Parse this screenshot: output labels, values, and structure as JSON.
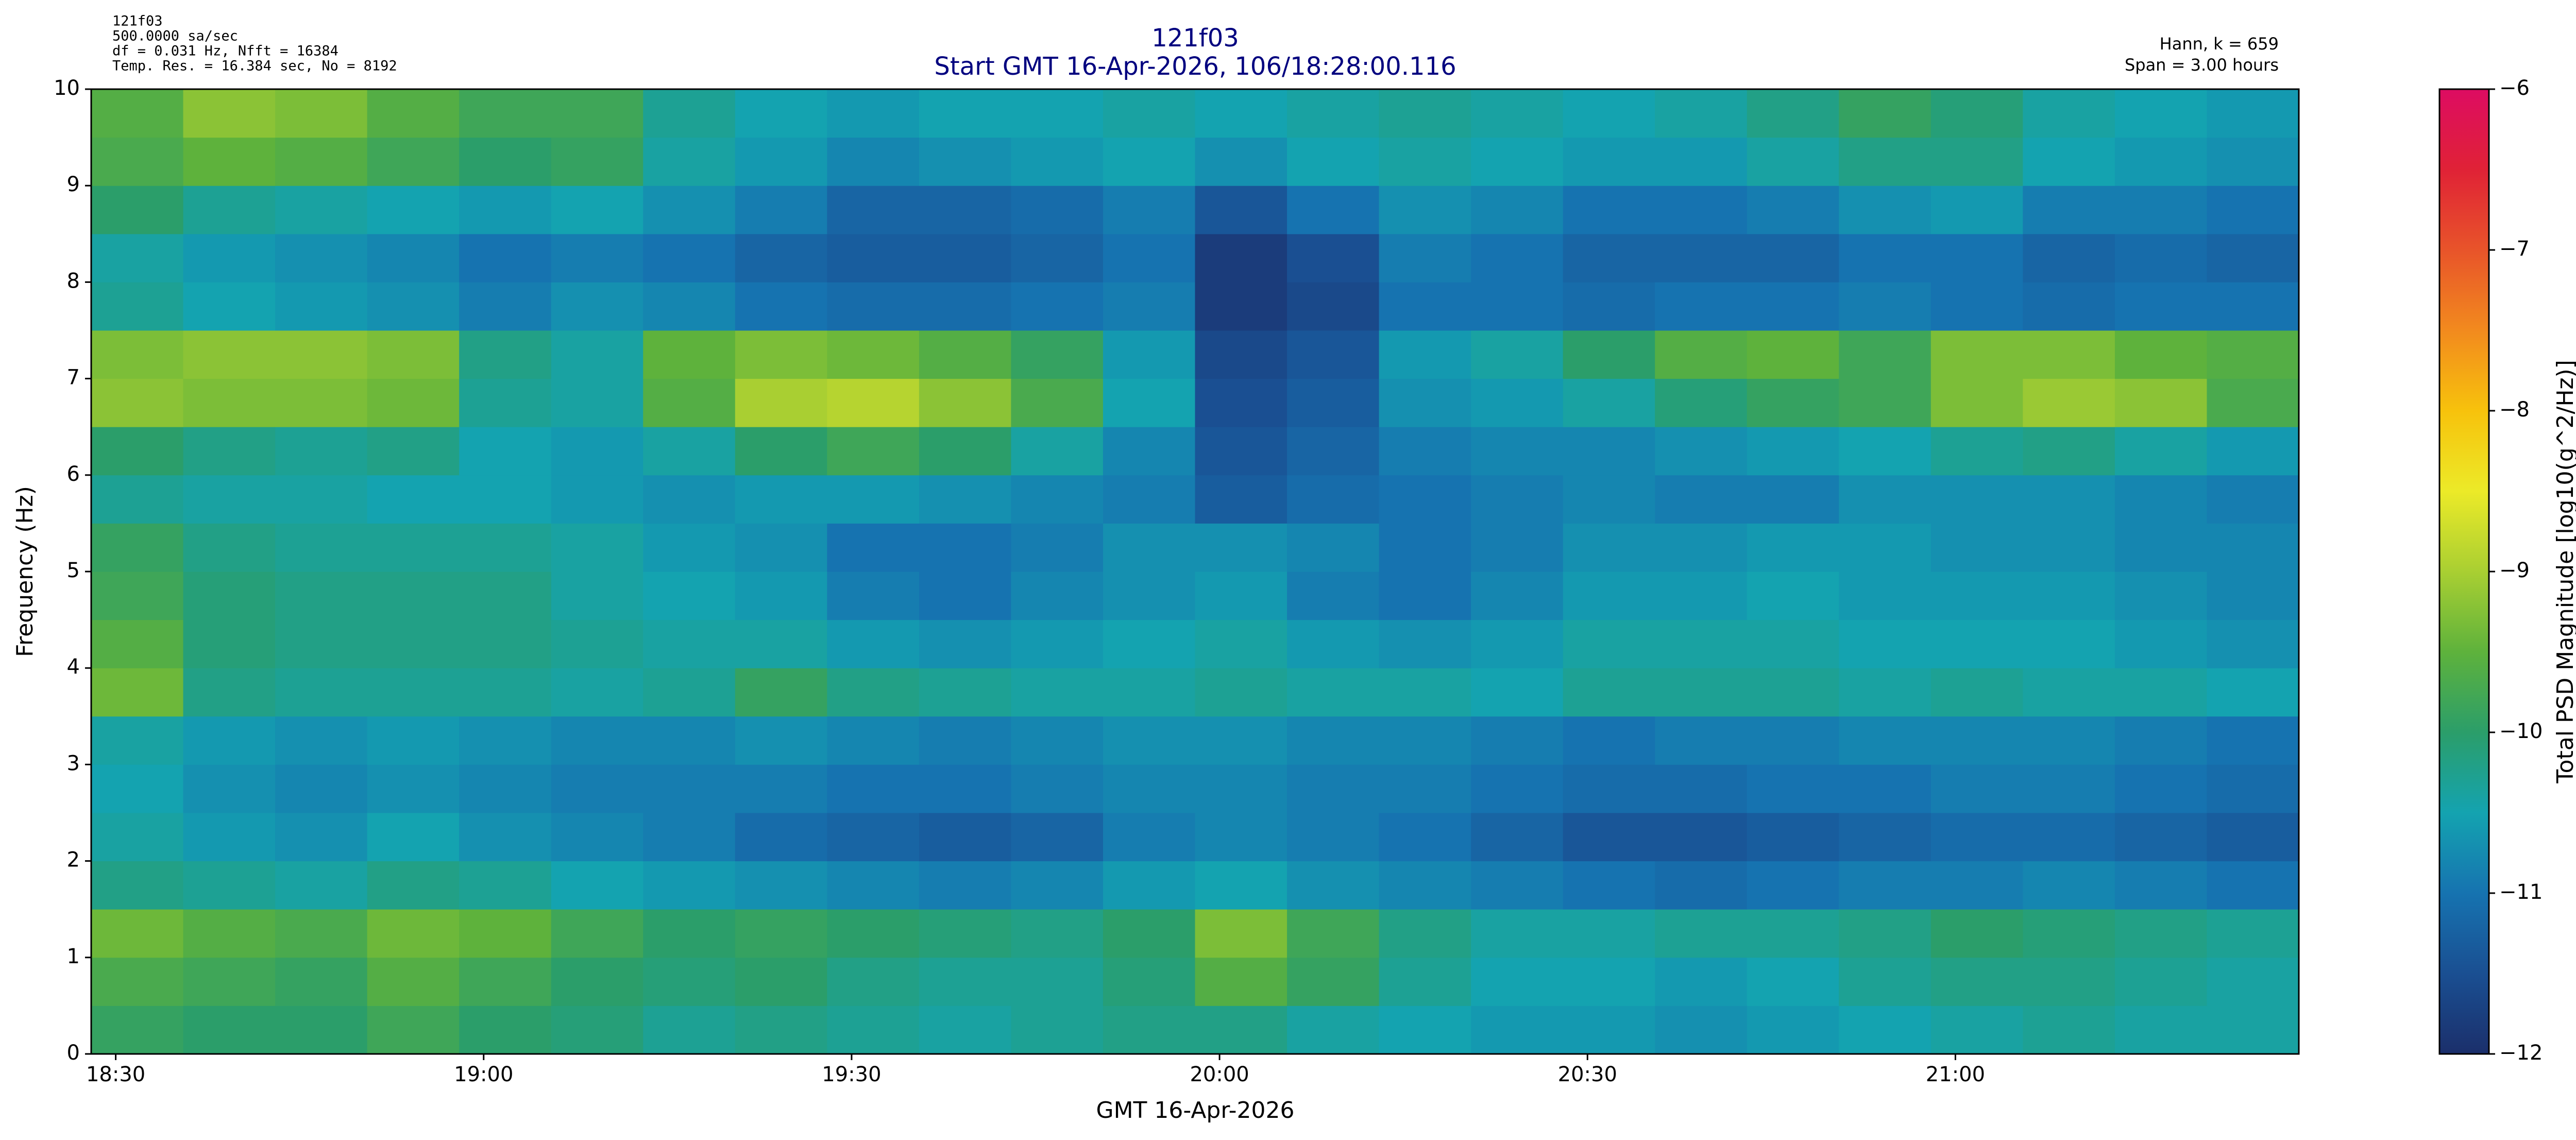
{
  "chart_data": {
    "type": "heatmap",
    "info_lines": [
      "121f03",
      "500.0000 sa/sec",
      "df = 0.031 Hz,  Nfft = 16384",
      "Temp. Res. = 16.384 sec, No = 8192"
    ],
    "title": "121f03",
    "subtitle": "Start GMT 16-Apr-2026, 106/18:28:00.116",
    "right_lines": [
      "Hann, k = 659",
      "Span = 3.00 hours"
    ],
    "xlabel": "GMT 16-Apr-2026",
    "ylabel": "Frequency (Hz)",
    "colorbar_label": "Total PSD Magnitude [log10(g^2/Hz)]",
    "xlim": [
      1108,
      1288
    ],
    "xticks": [
      {
        "value": 1110,
        "label": "18:30"
      },
      {
        "value": 1140,
        "label": "19:00"
      },
      {
        "value": 1170,
        "label": "19:30"
      },
      {
        "value": 1200,
        "label": "20:00"
      },
      {
        "value": 1230,
        "label": "20:30"
      },
      {
        "value": 1260,
        "label": "21:00"
      }
    ],
    "ylim": [
      0,
      10
    ],
    "yticks": [
      0,
      1,
      2,
      3,
      4,
      5,
      6,
      7,
      8,
      9,
      10
    ],
    "zlim": [
      -12,
      -6
    ],
    "zticks": [
      {
        "value": -12,
        "label": "−12"
      },
      {
        "value": -11,
        "label": "−11"
      },
      {
        "value": -10,
        "label": "−10"
      },
      {
        "value": -9,
        "label": "−9"
      },
      {
        "value": -8,
        "label": "−8"
      },
      {
        "value": -7,
        "label": "−7"
      },
      {
        "value": -6,
        "label": "−6"
      }
    ],
    "colormap": [
      "#1b2f6b",
      "#1a4f92",
      "#1673b0",
      "#14a3b0",
      "#2b9e6a",
      "#5eb23c",
      "#a9cf32",
      "#ecea28",
      "#f7c20c",
      "#f28a1e",
      "#e8542a",
      "#e02236",
      "#dd0c62"
    ],
    "xbins": [
      1108,
      1115.5,
      1123,
      1130.5,
      1138,
      1145.5,
      1153,
      1160.5,
      1168,
      1175.5,
      1183,
      1190.5,
      1198,
      1205.5,
      1213,
      1220.5,
      1228,
      1235.5,
      1243,
      1250.5,
      1258,
      1265.5,
      1273,
      1280.5,
      1288
    ],
    "ybins": [
      0,
      0.5,
      1,
      1.5,
      2,
      2.5,
      3,
      3.5,
      4,
      4.5,
      5,
      5.5,
      6,
      6.5,
      7,
      7.5,
      8,
      8.5,
      9,
      9.5,
      10
    ],
    "z": [
      [
        -9.9,
        -10.0,
        -10.0,
        -9.8,
        -10.0,
        -10.1,
        -10.3,
        -10.2,
        -10.3,
        -10.4,
        -10.3,
        -10.2,
        -10.2,
        -10.4,
        -10.5,
        -10.6,
        -10.6,
        -10.7,
        -10.6,
        -10.5,
        -10.4,
        -10.3,
        -10.4,
        -10.4
      ],
      [
        -9.7,
        -9.8,
        -9.9,
        -9.6,
        -9.8,
        -10.0,
        -10.1,
        -10.0,
        -10.2,
        -10.3,
        -10.3,
        -10.1,
        -9.6,
        -9.9,
        -10.3,
        -10.5,
        -10.5,
        -10.6,
        -10.5,
        -10.3,
        -10.2,
        -10.2,
        -10.3,
        -10.4
      ],
      [
        -9.4,
        -9.6,
        -9.7,
        -9.4,
        -9.5,
        -9.8,
        -10.0,
        -9.9,
        -10.0,
        -10.1,
        -10.2,
        -10.0,
        -9.3,
        -9.8,
        -10.2,
        -10.4,
        -10.4,
        -10.3,
        -10.3,
        -10.2,
        -10.0,
        -10.1,
        -10.2,
        -10.3
      ],
      [
        -10.2,
        -10.3,
        -10.4,
        -10.2,
        -10.3,
        -10.5,
        -10.6,
        -10.7,
        -10.8,
        -10.9,
        -10.8,
        -10.6,
        -10.5,
        -10.7,
        -10.8,
        -10.9,
        -11.0,
        -11.1,
        -11.0,
        -10.9,
        -10.9,
        -10.8,
        -10.9,
        -11.0
      ],
      [
        -10.4,
        -10.6,
        -10.7,
        -10.5,
        -10.7,
        -10.8,
        -10.9,
        -11.1,
        -11.2,
        -11.3,
        -11.2,
        -10.9,
        -10.8,
        -10.9,
        -11.0,
        -11.2,
        -11.4,
        -11.4,
        -11.3,
        -11.2,
        -11.1,
        -11.1,
        -11.2,
        -11.3
      ],
      [
        -10.5,
        -10.7,
        -10.8,
        -10.7,
        -10.8,
        -10.9,
        -10.9,
        -10.9,
        -11.0,
        -11.0,
        -10.9,
        -10.8,
        -10.8,
        -10.9,
        -10.9,
        -11.0,
        -11.1,
        -11.1,
        -11.0,
        -11.0,
        -10.9,
        -10.9,
        -11.0,
        -11.1
      ],
      [
        -10.4,
        -10.6,
        -10.7,
        -10.6,
        -10.7,
        -10.8,
        -10.8,
        -10.7,
        -10.8,
        -10.9,
        -10.8,
        -10.7,
        -10.7,
        -10.8,
        -10.8,
        -10.9,
        -11.0,
        -10.9,
        -10.9,
        -10.8,
        -10.8,
        -10.8,
        -10.9,
        -11.0
      ],
      [
        -9.4,
        -10.2,
        -10.3,
        -10.3,
        -10.3,
        -10.4,
        -10.3,
        -9.9,
        -10.2,
        -10.3,
        -10.4,
        -10.4,
        -10.3,
        -10.4,
        -10.4,
        -10.5,
        -10.3,
        -10.3,
        -10.3,
        -10.4,
        -10.3,
        -10.4,
        -10.4,
        -10.5
      ],
      [
        -9.6,
        -10.1,
        -10.2,
        -10.2,
        -10.2,
        -10.3,
        -10.4,
        -10.4,
        -10.6,
        -10.7,
        -10.6,
        -10.5,
        -10.4,
        -10.6,
        -10.7,
        -10.6,
        -10.4,
        -10.4,
        -10.4,
        -10.5,
        -10.5,
        -10.5,
        -10.6,
        -10.7
      ],
      [
        -9.8,
        -10.1,
        -10.2,
        -10.2,
        -10.2,
        -10.4,
        -10.5,
        -10.6,
        -10.9,
        -11.0,
        -10.8,
        -10.7,
        -10.6,
        -10.9,
        -11.0,
        -10.8,
        -10.6,
        -10.6,
        -10.5,
        -10.6,
        -10.6,
        -10.6,
        -10.7,
        -10.8
      ],
      [
        -9.9,
        -10.2,
        -10.3,
        -10.3,
        -10.3,
        -10.4,
        -10.6,
        -10.7,
        -11.0,
        -11.0,
        -10.9,
        -10.7,
        -10.7,
        -10.8,
        -11.0,
        -10.9,
        -10.7,
        -10.7,
        -10.6,
        -10.6,
        -10.7,
        -10.7,
        -10.8,
        -10.8
      ],
      [
        -10.3,
        -10.4,
        -10.4,
        -10.5,
        -10.5,
        -10.6,
        -10.7,
        -10.6,
        -10.6,
        -10.7,
        -10.8,
        -10.9,
        -11.3,
        -11.1,
        -11.0,
        -10.9,
        -10.8,
        -10.9,
        -10.9,
        -10.7,
        -10.7,
        -10.7,
        -10.8,
        -10.9
      ],
      [
        -10.0,
        -10.2,
        -10.3,
        -10.2,
        -10.5,
        -10.6,
        -10.4,
        -10.0,
        -9.8,
        -10.0,
        -10.4,
        -10.8,
        -11.4,
        -11.2,
        -10.9,
        -10.8,
        -10.8,
        -10.7,
        -10.6,
        -10.5,
        -10.3,
        -10.2,
        -10.4,
        -10.6
      ],
      [
        -9.2,
        -9.3,
        -9.3,
        -9.4,
        -10.3,
        -10.4,
        -9.6,
        -9.0,
        -8.9,
        -9.2,
        -9.7,
        -10.5,
        -11.5,
        -11.3,
        -10.7,
        -10.6,
        -10.4,
        -10.1,
        -9.9,
        -9.8,
        -9.3,
        -9.1,
        -9.2,
        -9.7
      ],
      [
        -9.3,
        -9.2,
        -9.2,
        -9.3,
        -10.2,
        -10.4,
        -9.5,
        -9.3,
        -9.4,
        -9.6,
        -9.9,
        -10.6,
        -11.6,
        -11.4,
        -10.6,
        -10.4,
        -10.0,
        -9.6,
        -9.5,
        -9.8,
        -9.3,
        -9.3,
        -9.5,
        -9.6
      ],
      [
        -10.3,
        -10.5,
        -10.6,
        -10.7,
        -10.9,
        -10.7,
        -10.8,
        -11.0,
        -11.1,
        -11.1,
        -11.0,
        -10.9,
        -11.8,
        -11.6,
        -11.0,
        -11.0,
        -11.1,
        -11.0,
        -11.0,
        -10.9,
        -11.0,
        -11.1,
        -11.0,
        -11.0
      ],
      [
        -10.4,
        -10.6,
        -10.7,
        -10.8,
        -11.0,
        -10.9,
        -11.0,
        -11.2,
        -11.3,
        -11.3,
        -11.2,
        -11.0,
        -11.8,
        -11.5,
        -10.9,
        -11.0,
        -11.2,
        -11.2,
        -11.2,
        -11.0,
        -11.0,
        -11.2,
        -11.1,
        -11.2
      ],
      [
        -10.0,
        -10.3,
        -10.4,
        -10.5,
        -10.6,
        -10.5,
        -10.7,
        -10.9,
        -11.2,
        -11.2,
        -11.1,
        -10.9,
        -11.4,
        -11.0,
        -10.7,
        -10.8,
        -11.0,
        -11.0,
        -10.9,
        -10.7,
        -10.6,
        -10.9,
        -10.9,
        -11.0
      ],
      [
        -9.7,
        -9.5,
        -9.6,
        -9.8,
        -10.0,
        -9.9,
        -10.4,
        -10.6,
        -10.8,
        -10.7,
        -10.6,
        -10.5,
        -10.7,
        -10.5,
        -10.4,
        -10.5,
        -10.6,
        -10.6,
        -10.4,
        -10.2,
        -10.2,
        -10.5,
        -10.6,
        -10.7
      ],
      [
        -9.6,
        -9.2,
        -9.3,
        -9.6,
        -9.8,
        -9.8,
        -10.3,
        -10.5,
        -10.6,
        -10.5,
        -10.5,
        -10.4,
        -10.5,
        -10.4,
        -10.3,
        -10.4,
        -10.5,
        -10.4,
        -10.2,
        -9.9,
        -10.1,
        -10.4,
        -10.5,
        -10.6
      ]
    ],
    "title_color": "#00007f"
  }
}
